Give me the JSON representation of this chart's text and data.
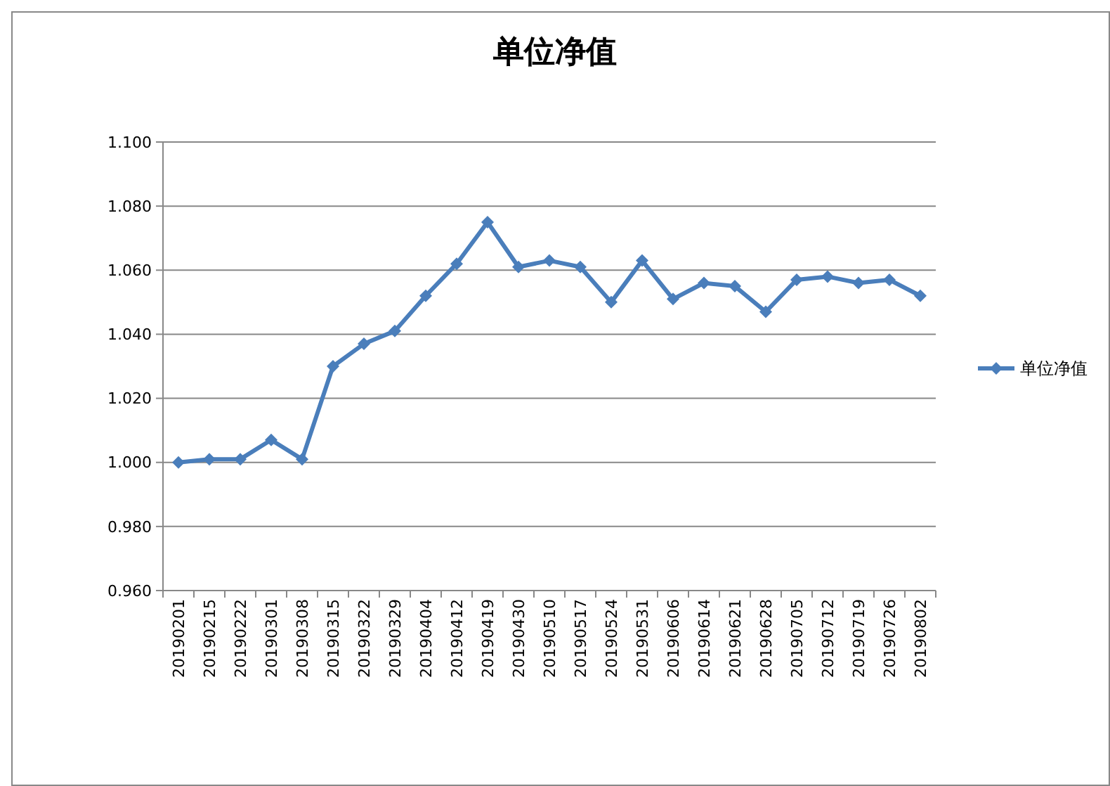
{
  "chart_data": {
    "type": "line",
    "title": "单位净值",
    "categories": [
      "20190201",
      "20190215",
      "20190222",
      "20190301",
      "20190308",
      "20190315",
      "20190322",
      "20190329",
      "20190404",
      "20190412",
      "20190419",
      "20190430",
      "20190510",
      "20190517",
      "20190524",
      "20190531",
      "20190606",
      "20190614",
      "20190621",
      "20190628",
      "20190705",
      "20190712",
      "20190719",
      "20190726",
      "20190802"
    ],
    "series": [
      {
        "name": "单位净值",
        "color": "#4a7ebb",
        "values": [
          1.0,
          1.001,
          1.001,
          1.007,
          1.001,
          1.03,
          1.037,
          1.041,
          1.052,
          1.062,
          1.075,
          1.061,
          1.063,
          1.061,
          1.05,
          1.063,
          1.051,
          1.056,
          1.055,
          1.047,
          1.057,
          1.058,
          1.056,
          1.057,
          1.052
        ]
      }
    ],
    "ylim": [
      0.96,
      1.1
    ],
    "yticks": [
      {
        "value": 0.96,
        "label": "0.960"
      },
      {
        "value": 0.98,
        "label": "0.980"
      },
      {
        "value": 1.0,
        "label": "1.000"
      },
      {
        "value": 1.02,
        "label": "1.020"
      },
      {
        "value": 1.04,
        "label": "1.040"
      },
      {
        "value": 1.06,
        "label": "1.060"
      },
      {
        "value": 1.08,
        "label": "1.080"
      },
      {
        "value": 1.1,
        "label": "1.100"
      }
    ],
    "grid": "y",
    "legend": "right",
    "marker": "diamond",
    "line_style": "solid"
  }
}
